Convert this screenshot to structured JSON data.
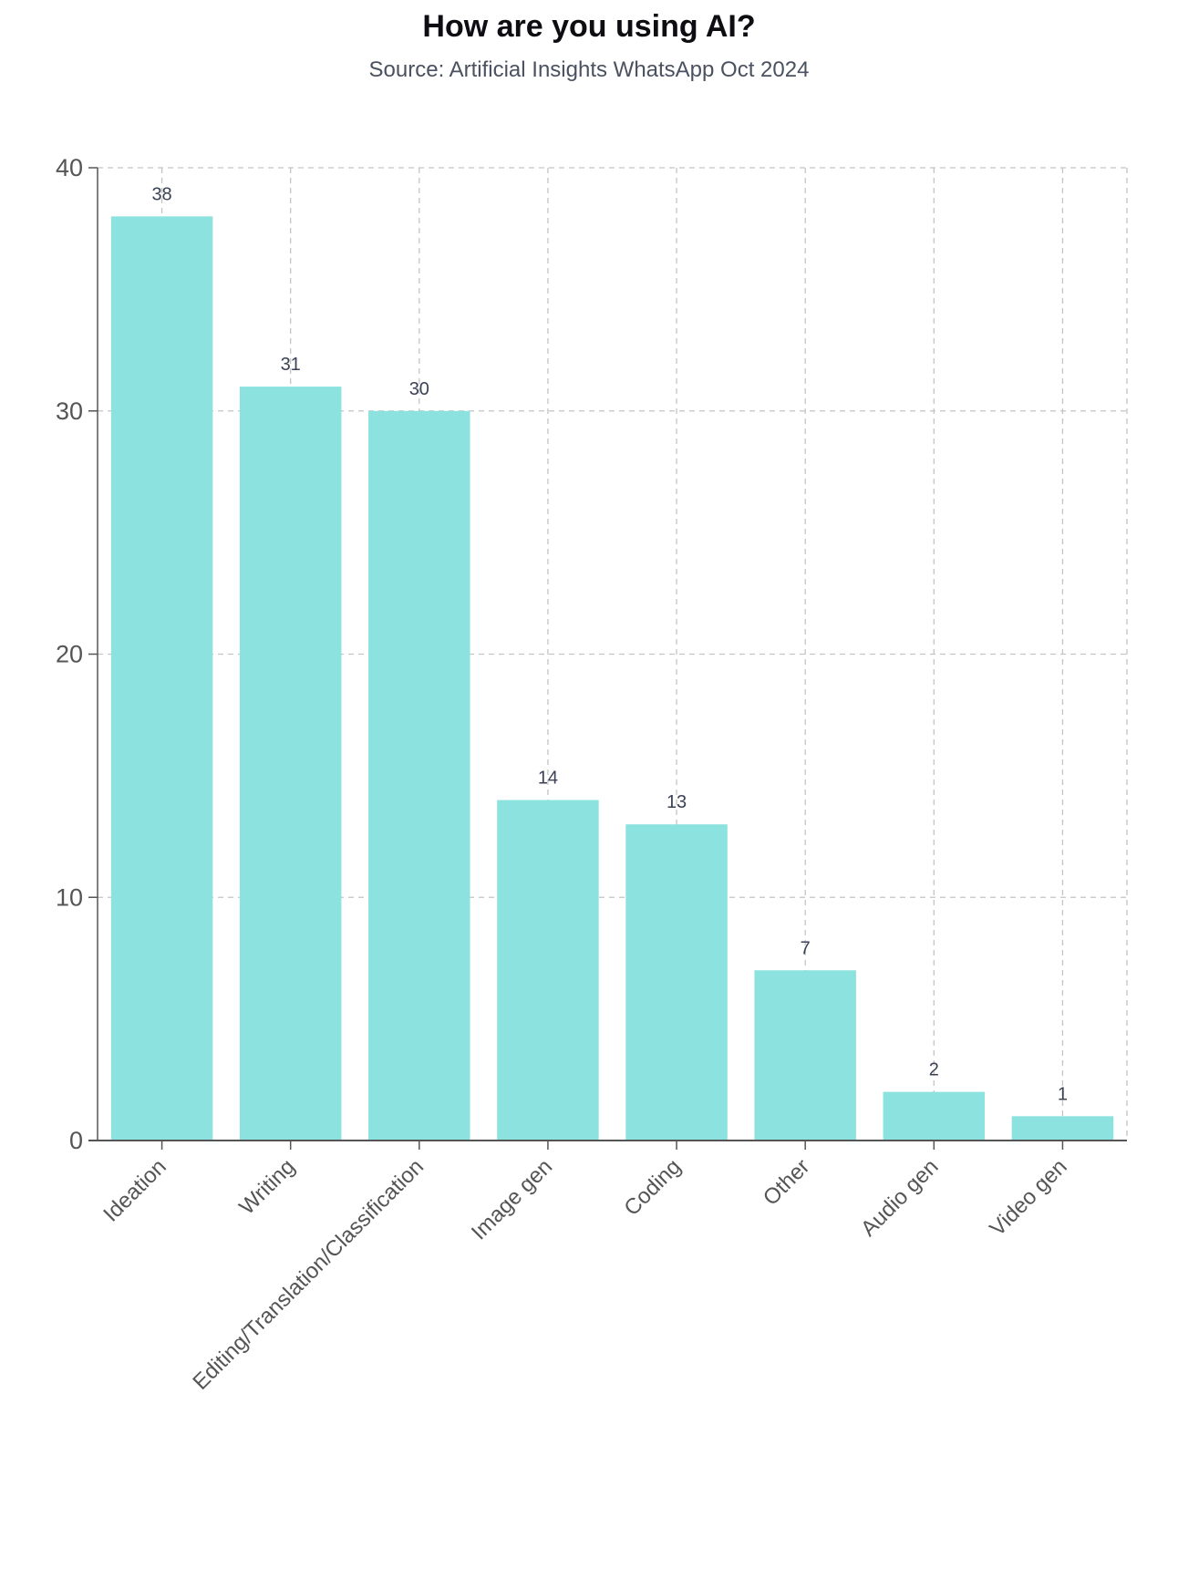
{
  "chart_data": {
    "type": "bar",
    "title": "How are you using AI?",
    "subtitle": "Source: Artificial Insights WhatsApp Oct 2024",
    "xlabel": "",
    "ylabel": "",
    "categories": [
      "Ideation",
      "Writing",
      "Editing/Translation/Classification",
      "Image gen",
      "Coding",
      "Other",
      "Audio gen",
      "Video gen"
    ],
    "values": [
      38,
      31,
      30,
      14,
      13,
      7,
      2,
      1
    ],
    "ylim": [
      0,
      40
    ],
    "yticks": [
      0,
      10,
      20,
      30,
      40
    ],
    "grid": true,
    "bar_color": "#8ce2df",
    "data_labels": true,
    "xtick_rotation": -45
  }
}
